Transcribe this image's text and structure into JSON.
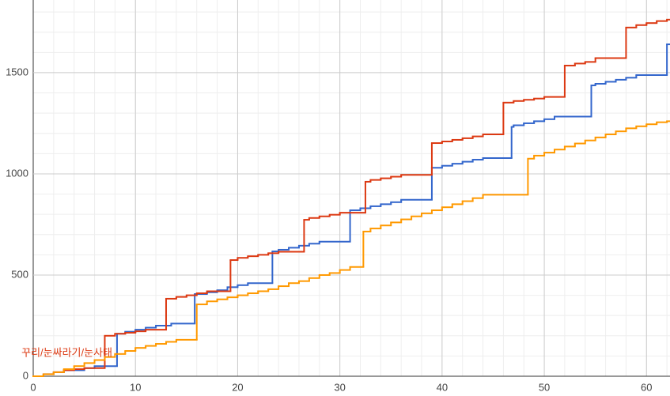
{
  "chart_data": {
    "type": "step-line",
    "annotation": "꾸리/눈싸라기/눈사태",
    "xlim": [
      0,
      62.3
    ],
    "ylim": [
      0,
      1859
    ],
    "xticks": [
      0,
      10,
      20,
      30,
      40,
      50,
      60
    ],
    "yticks": [
      0,
      500,
      1000,
      1500
    ],
    "grid": true,
    "series": [
      {
        "color": "#3366cc",
        "x": [
          0,
          1,
          2,
          3,
          5,
          6,
          8.2,
          9,
          10,
          11,
          12,
          13.5,
          15.8,
          17,
          18,
          19,
          20,
          21,
          23.4,
          24,
          25,
          26,
          27,
          28,
          31,
          32,
          33,
          34,
          35,
          36,
          39,
          40,
          41,
          42,
          43,
          44,
          46.8,
          47,
          48,
          49,
          50,
          51,
          54.6,
          55,
          56,
          57,
          58,
          59,
          62
        ],
        "values": [
          0,
          10,
          20,
          30,
          40,
          50,
          210,
          220,
          230,
          240,
          250,
          260,
          406,
          415,
          425,
          440,
          450,
          460,
          617,
          625,
          635,
          645,
          655,
          665,
          820,
          830,
          840,
          850,
          860,
          872,
          1030,
          1040,
          1050,
          1060,
          1070,
          1078,
          1232,
          1240,
          1250,
          1260,
          1270,
          1283,
          1437,
          1445,
          1455,
          1465,
          1475,
          1488,
          1640
        ]
      },
      {
        "color": "#dc3912",
        "x": [
          0,
          1,
          2,
          3,
          4,
          5,
          7,
          8,
          9,
          10,
          11,
          13,
          14,
          15,
          16,
          17,
          19.3,
          20,
          21,
          22,
          23,
          24,
          26.5,
          27,
          28,
          29,
          30,
          32.5,
          33,
          34,
          35,
          36,
          39,
          40,
          41,
          42,
          43,
          44,
          46,
          47,
          48,
          49,
          50,
          52,
          53,
          54,
          55,
          58,
          59,
          60,
          61,
          62
        ],
        "values": [
          0,
          10,
          20,
          30,
          35,
          40,
          200,
          210,
          215,
          222,
          230,
          383,
          392,
          400,
          410,
          420,
          574,
          585,
          593,
          600,
          608,
          615,
          773,
          782,
          790,
          798,
          808,
          961,
          970,
          978,
          986,
          995,
          1152,
          1160,
          1168,
          1176,
          1185,
          1195,
          1352,
          1360,
          1366,
          1372,
          1380,
          1535,
          1545,
          1553,
          1572,
          1723,
          1735,
          1745,
          1755,
          1762
        ]
      },
      {
        "color": "#ff9900",
        "x": [
          0,
          1,
          2,
          3,
          4,
          5,
          6,
          7,
          8,
          9,
          10,
          11,
          12,
          13,
          14,
          16,
          17,
          18,
          19,
          20,
          21,
          22,
          23,
          24,
          25,
          26,
          27,
          28,
          29,
          30,
          31,
          32.3,
          33,
          34,
          35,
          36,
          37,
          38,
          39,
          40,
          41,
          42,
          43,
          44,
          48.4,
          49,
          50,
          51,
          52,
          53,
          54,
          55,
          56,
          57,
          58,
          59,
          60,
          61,
          62
        ],
        "values": [
          0,
          10,
          20,
          35,
          50,
          65,
          80,
          95,
          110,
          125,
          140,
          150,
          160,
          170,
          180,
          355,
          370,
          380,
          390,
          400,
          410,
          420,
          430,
          445,
          460,
          470,
          485,
          500,
          510,
          525,
          540,
          715,
          730,
          745,
          760,
          775,
          790,
          805,
          820,
          835,
          850,
          865,
          880,
          897,
          1075,
          1090,
          1105,
          1120,
          1135,
          1150,
          1165,
          1180,
          1195,
          1210,
          1225,
          1235,
          1245,
          1255,
          1260
        ]
      }
    ]
  }
}
